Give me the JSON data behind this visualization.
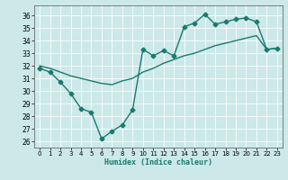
{
  "xlabel": "Humidex (Indice chaleur)",
  "background_color": "#cce8e8",
  "grid_color": "#ffffff",
  "line_color": "#1a7a6e",
  "xlim": [
    -0.5,
    23.5
  ],
  "ylim": [
    25.5,
    36.8
  ],
  "yticks": [
    26,
    27,
    28,
    29,
    30,
    31,
    32,
    33,
    34,
    35,
    36
  ],
  "xticks": [
    0,
    1,
    2,
    3,
    4,
    5,
    6,
    7,
    8,
    9,
    10,
    11,
    12,
    13,
    14,
    15,
    16,
    17,
    18,
    19,
    20,
    21,
    22,
    23
  ],
  "series1_x": [
    0,
    1,
    2,
    3,
    4,
    5,
    6,
    7,
    8,
    9,
    10,
    11,
    12,
    13,
    14,
    15,
    16,
    17,
    18,
    19,
    20,
    21,
    22,
    23
  ],
  "series1_y": [
    31.8,
    31.5,
    30.7,
    29.8,
    28.6,
    28.3,
    26.2,
    26.8,
    27.3,
    28.5,
    33.3,
    32.8,
    33.2,
    32.8,
    35.1,
    35.4,
    36.1,
    35.3,
    35.5,
    35.7,
    35.8,
    35.5,
    33.3,
    33.4
  ],
  "series2_x": [
    0,
    1,
    2,
    3,
    4,
    5,
    6,
    7,
    8,
    9,
    10,
    11,
    12,
    13,
    14,
    15,
    16,
    17,
    18,
    19,
    20,
    21,
    22,
    23
  ],
  "series2_y": [
    32.0,
    31.8,
    31.5,
    31.2,
    31.0,
    30.8,
    30.6,
    30.5,
    30.8,
    31.0,
    31.5,
    31.8,
    32.2,
    32.5,
    32.8,
    33.0,
    33.3,
    33.6,
    33.8,
    34.0,
    34.2,
    34.4,
    33.3,
    33.4
  ],
  "marker": "D",
  "markersize": 2.5,
  "linewidth": 1.0
}
